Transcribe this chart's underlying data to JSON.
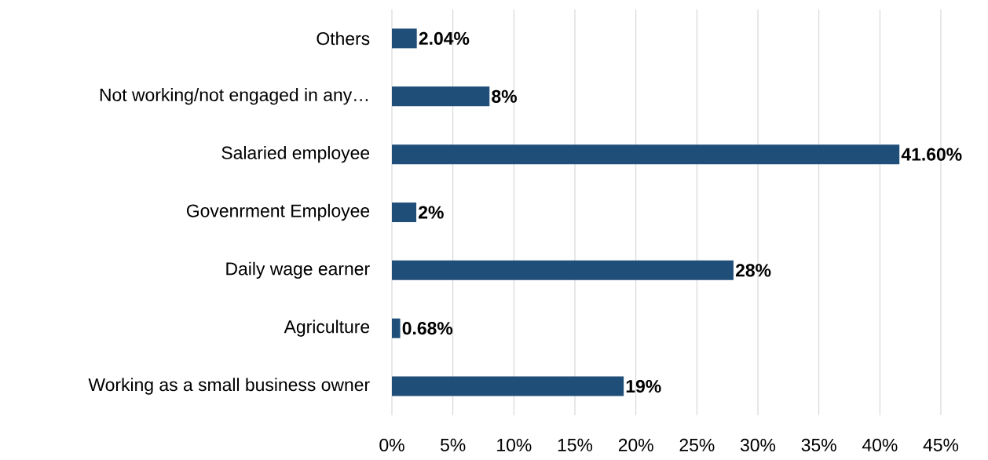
{
  "chart_data": {
    "type": "bar",
    "orientation": "horizontal",
    "categories": [
      "Others",
      "Not working/not engaged in any…",
      "Salaried employee",
      "Govenrment Employee",
      "Daily wage earner",
      "Agriculture",
      "Working as a small business owner"
    ],
    "values": [
      2.04,
      8,
      41.6,
      2,
      28,
      0.68,
      19
    ],
    "value_labels": [
      "2.04%",
      "8%",
      "41.60%",
      "2%",
      "28%",
      "0.68%",
      "19%"
    ],
    "color": "#1f4e79",
    "xlim": [
      0,
      45
    ],
    "xticks": [
      {
        "value": 0,
        "label": "0%"
      },
      {
        "value": 5,
        "label": "5%"
      },
      {
        "value": 10,
        "label": "10%"
      },
      {
        "value": 15,
        "label": "15%"
      },
      {
        "value": 20,
        "label": "20%"
      },
      {
        "value": 25,
        "label": "25%"
      },
      {
        "value": 30,
        "label": "30%"
      },
      {
        "value": 35,
        "label": "35%"
      },
      {
        "value": 40,
        "label": "40%"
      },
      {
        "value": 45,
        "label": "45%"
      }
    ],
    "grid": "x"
  }
}
